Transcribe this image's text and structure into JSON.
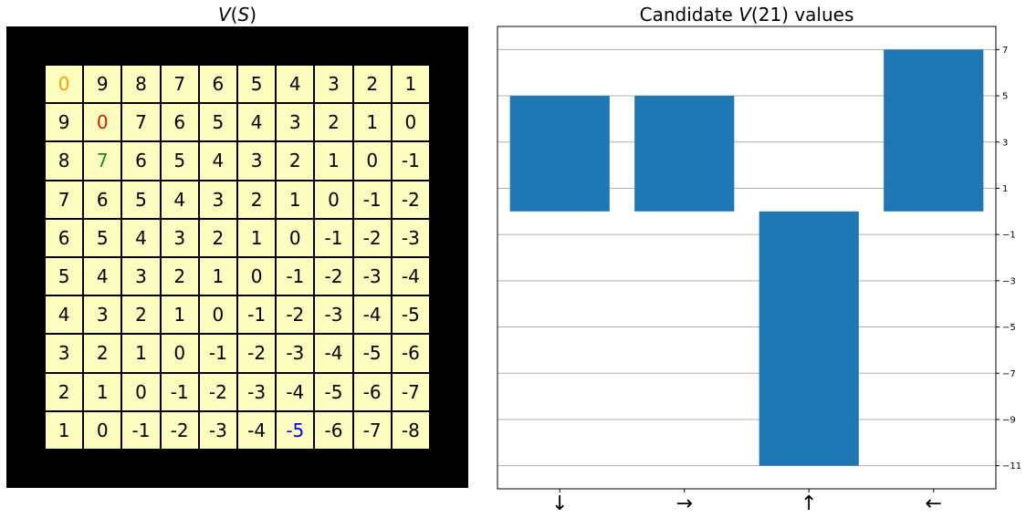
{
  "left_title": {
    "prefix": "",
    "var": "V",
    "arg": "S"
  },
  "right_title": {
    "prefix": "Candidate ",
    "var": "V",
    "arg": "21",
    "suffix": " values"
  },
  "grid": {
    "rows": [
      [
        "0",
        "9",
        "8",
        "7",
        "6",
        "5",
        "4",
        "3",
        "2",
        "1"
      ],
      [
        "9",
        "0",
        "7",
        "6",
        "5",
        "4",
        "3",
        "2",
        "1",
        "0"
      ],
      [
        "8",
        "7",
        "6",
        "5",
        "4",
        "3",
        "2",
        "1",
        "0",
        "-1"
      ],
      [
        "7",
        "6",
        "5",
        "4",
        "3",
        "2",
        "1",
        "0",
        "-1",
        "-2"
      ],
      [
        "6",
        "5",
        "4",
        "3",
        "2",
        "1",
        "0",
        "-1",
        "-2",
        "-3"
      ],
      [
        "5",
        "4",
        "3",
        "2",
        "1",
        "0",
        "-1",
        "-2",
        "-3",
        "-4"
      ],
      [
        "4",
        "3",
        "2",
        "1",
        "0",
        "-1",
        "-2",
        "-3",
        "-4",
        "-5"
      ],
      [
        "3",
        "2",
        "1",
        "0",
        "-1",
        "-2",
        "-3",
        "-4",
        "-5",
        "-6"
      ],
      [
        "2",
        "1",
        "0",
        "-1",
        "-2",
        "-3",
        "-4",
        "-5",
        "-6",
        "-7"
      ],
      [
        "1",
        "0",
        "-1",
        "-2",
        "-3",
        "-4",
        "-5",
        "-6",
        "-7",
        "-8"
      ]
    ],
    "highlights": [
      {
        "row": 0,
        "col": 0,
        "color": "#f0a500"
      },
      {
        "row": 1,
        "col": 1,
        "color": "#cc2200"
      },
      {
        "row": 2,
        "col": 1,
        "color": "#228b22"
      },
      {
        "row": 9,
        "col": 6,
        "color": "#0000ff"
      }
    ],
    "cell_color": "#fdfdbf",
    "border_color": "#000000"
  },
  "chart_data": [
    {
      "type": "heatmap",
      "title": "V(S)",
      "rows": 10,
      "cols": 10,
      "values": [
        [
          0,
          9,
          8,
          7,
          6,
          5,
          4,
          3,
          2,
          1
        ],
        [
          9,
          0,
          7,
          6,
          5,
          4,
          3,
          2,
          1,
          0
        ],
        [
          8,
          7,
          6,
          5,
          4,
          3,
          2,
          1,
          0,
          -1
        ],
        [
          7,
          6,
          5,
          4,
          3,
          2,
          1,
          0,
          -1,
          -2
        ],
        [
          6,
          5,
          4,
          3,
          2,
          1,
          0,
          -1,
          -2,
          -3
        ],
        [
          5,
          4,
          3,
          2,
          1,
          0,
          -1,
          -2,
          -3,
          -4
        ],
        [
          4,
          3,
          2,
          1,
          0,
          -1,
          -2,
          -3,
          -4,
          -5
        ],
        [
          3,
          2,
          1,
          0,
          -1,
          -2,
          -3,
          -4,
          -5,
          -6
        ],
        [
          2,
          1,
          0,
          -1,
          -2,
          -3,
          -4,
          -5,
          -6,
          -7
        ],
        [
          1,
          0,
          -1,
          -2,
          -3,
          -4,
          -5,
          -6,
          -7,
          -8
        ]
      ]
    },
    {
      "type": "bar",
      "title": "Candidate V(21) values",
      "categories": [
        "↓",
        "→",
        "↑",
        "←"
      ],
      "values": [
        5,
        5,
        -11,
        7
      ],
      "ylim": [
        -12,
        8
      ],
      "yticks": [
        -11,
        -9,
        -7,
        -5,
        -3,
        -1,
        1,
        3,
        5,
        7
      ],
      "y_axis_side": "right",
      "grid": true,
      "bar_color": "#1f77b4"
    }
  ]
}
